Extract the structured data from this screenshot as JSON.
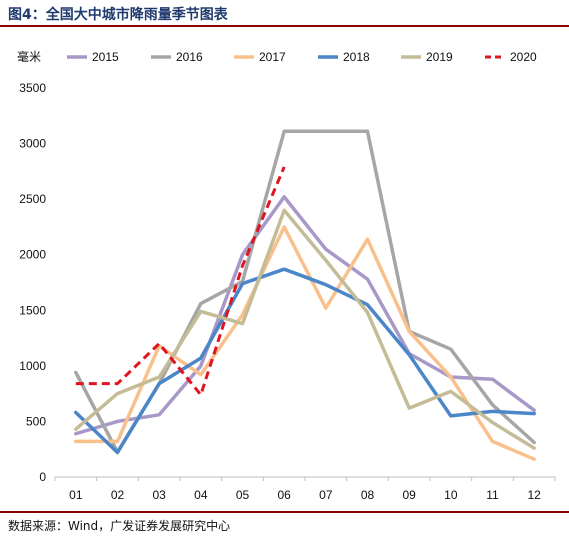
{
  "header": {
    "title": "图4：全国大中城市降雨量季节图表"
  },
  "footer": {
    "source": "数据来源：Wind，广发证券发展研究中心"
  },
  "chart_data": {
    "type": "line",
    "unit_label": "毫米",
    "categories": [
      "01",
      "02",
      "03",
      "04",
      "05",
      "06",
      "07",
      "08",
      "09",
      "10",
      "11",
      "12"
    ],
    "ylim": [
      0,
      3500
    ],
    "yticks": [
      0,
      500,
      1000,
      1500,
      2000,
      2500,
      3000,
      3500
    ],
    "grid": false,
    "legend_position": "top",
    "series": [
      {
        "name": "2015",
        "color": "#a898c8",
        "dash": false,
        "values": [
          390,
          500,
          560,
          1000,
          2000,
          2520,
          2050,
          1780,
          1110,
          900,
          880,
          600
        ]
      },
      {
        "name": "2016",
        "color": "#a6a6a6",
        "dash": false,
        "values": [
          940,
          225,
          840,
          1560,
          1760,
          3110,
          3110,
          3110,
          1310,
          1150,
          650,
          310
        ]
      },
      {
        "name": "2017",
        "color": "#f9c08c",
        "dash": false,
        "values": [
          320,
          320,
          1180,
          920,
          1460,
          2250,
          1520,
          2140,
          1310,
          900,
          320,
          160
        ]
      },
      {
        "name": "2018",
        "color": "#4a86c8",
        "dash": false,
        "values": [
          580,
          220,
          840,
          1070,
          1740,
          1870,
          1730,
          1550,
          1100,
          550,
          590,
          570
        ]
      },
      {
        "name": "2019",
        "color": "#c4bc96",
        "dash": false,
        "values": [
          430,
          750,
          900,
          1490,
          1380,
          2400,
          1950,
          1480,
          620,
          770,
          490,
          260
        ]
      },
      {
        "name": "2020",
        "color": "#e0141e",
        "dash": true,
        "values": [
          840,
          840,
          1200,
          740,
          1900,
          2790,
          null,
          null,
          null,
          null,
          null,
          null
        ]
      }
    ]
  }
}
